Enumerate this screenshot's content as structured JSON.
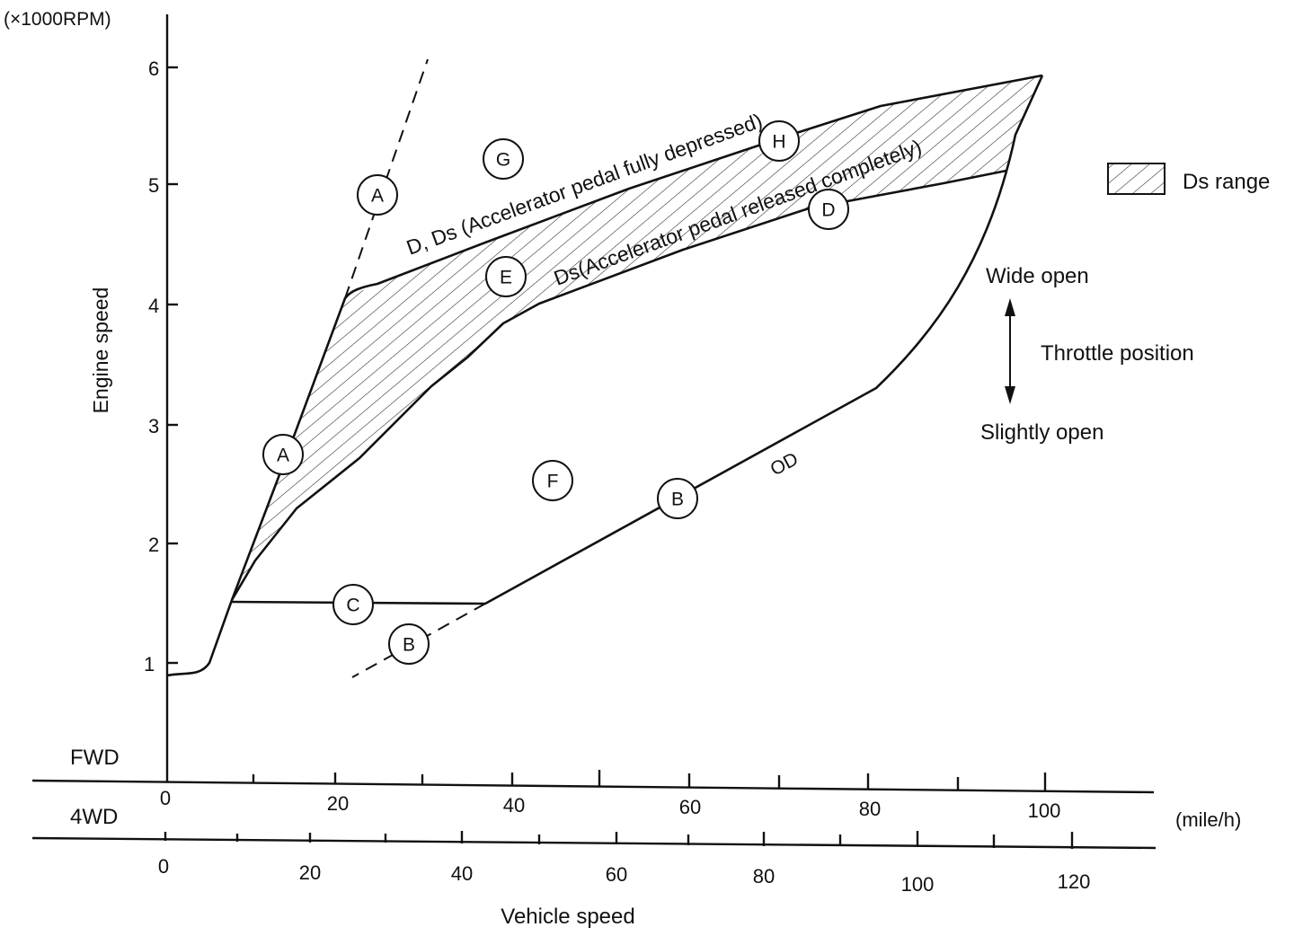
{
  "rpm_unit": "(×1000RPM)",
  "y_axis_title": "Engine speed",
  "y_ticks": [
    "1",
    "2",
    "3",
    "4",
    "5",
    "6"
  ],
  "fwd_label": "FWD",
  "fwd_ticks": [
    "0",
    "20",
    "40",
    "60",
    "80",
    "100"
  ],
  "awd_label": "4WD",
  "awd_ticks": [
    "0",
    "20",
    "40",
    "60",
    "80",
    "100",
    "120"
  ],
  "speed_unit": "(mile/h)",
  "x_axis_title": "Vehicle speed",
  "legend_label": "Ds range",
  "throttle": {
    "top": "Wide open",
    "middle": "Throttle position",
    "bottom": "Slightly open"
  },
  "curve_labels": {
    "upper": "D, Ds (Accelerator pedal fully depressed)",
    "lower": "Ds(Accelerator pedal released completely)",
    "od": "OD"
  },
  "region_markers": [
    {
      "name": "marker-a-upper",
      "letter": "A"
    },
    {
      "name": "marker-a-lower",
      "letter": "A"
    },
    {
      "name": "marker-g",
      "letter": "G"
    },
    {
      "name": "marker-h",
      "letter": "H"
    },
    {
      "name": "marker-e",
      "letter": "E"
    },
    {
      "name": "marker-d",
      "letter": "D"
    },
    {
      "name": "marker-f",
      "letter": "F"
    },
    {
      "name": "marker-b-upper",
      "letter": "B"
    },
    {
      "name": "marker-c",
      "letter": "C"
    },
    {
      "name": "marker-b-lower",
      "letter": "B"
    }
  ]
}
